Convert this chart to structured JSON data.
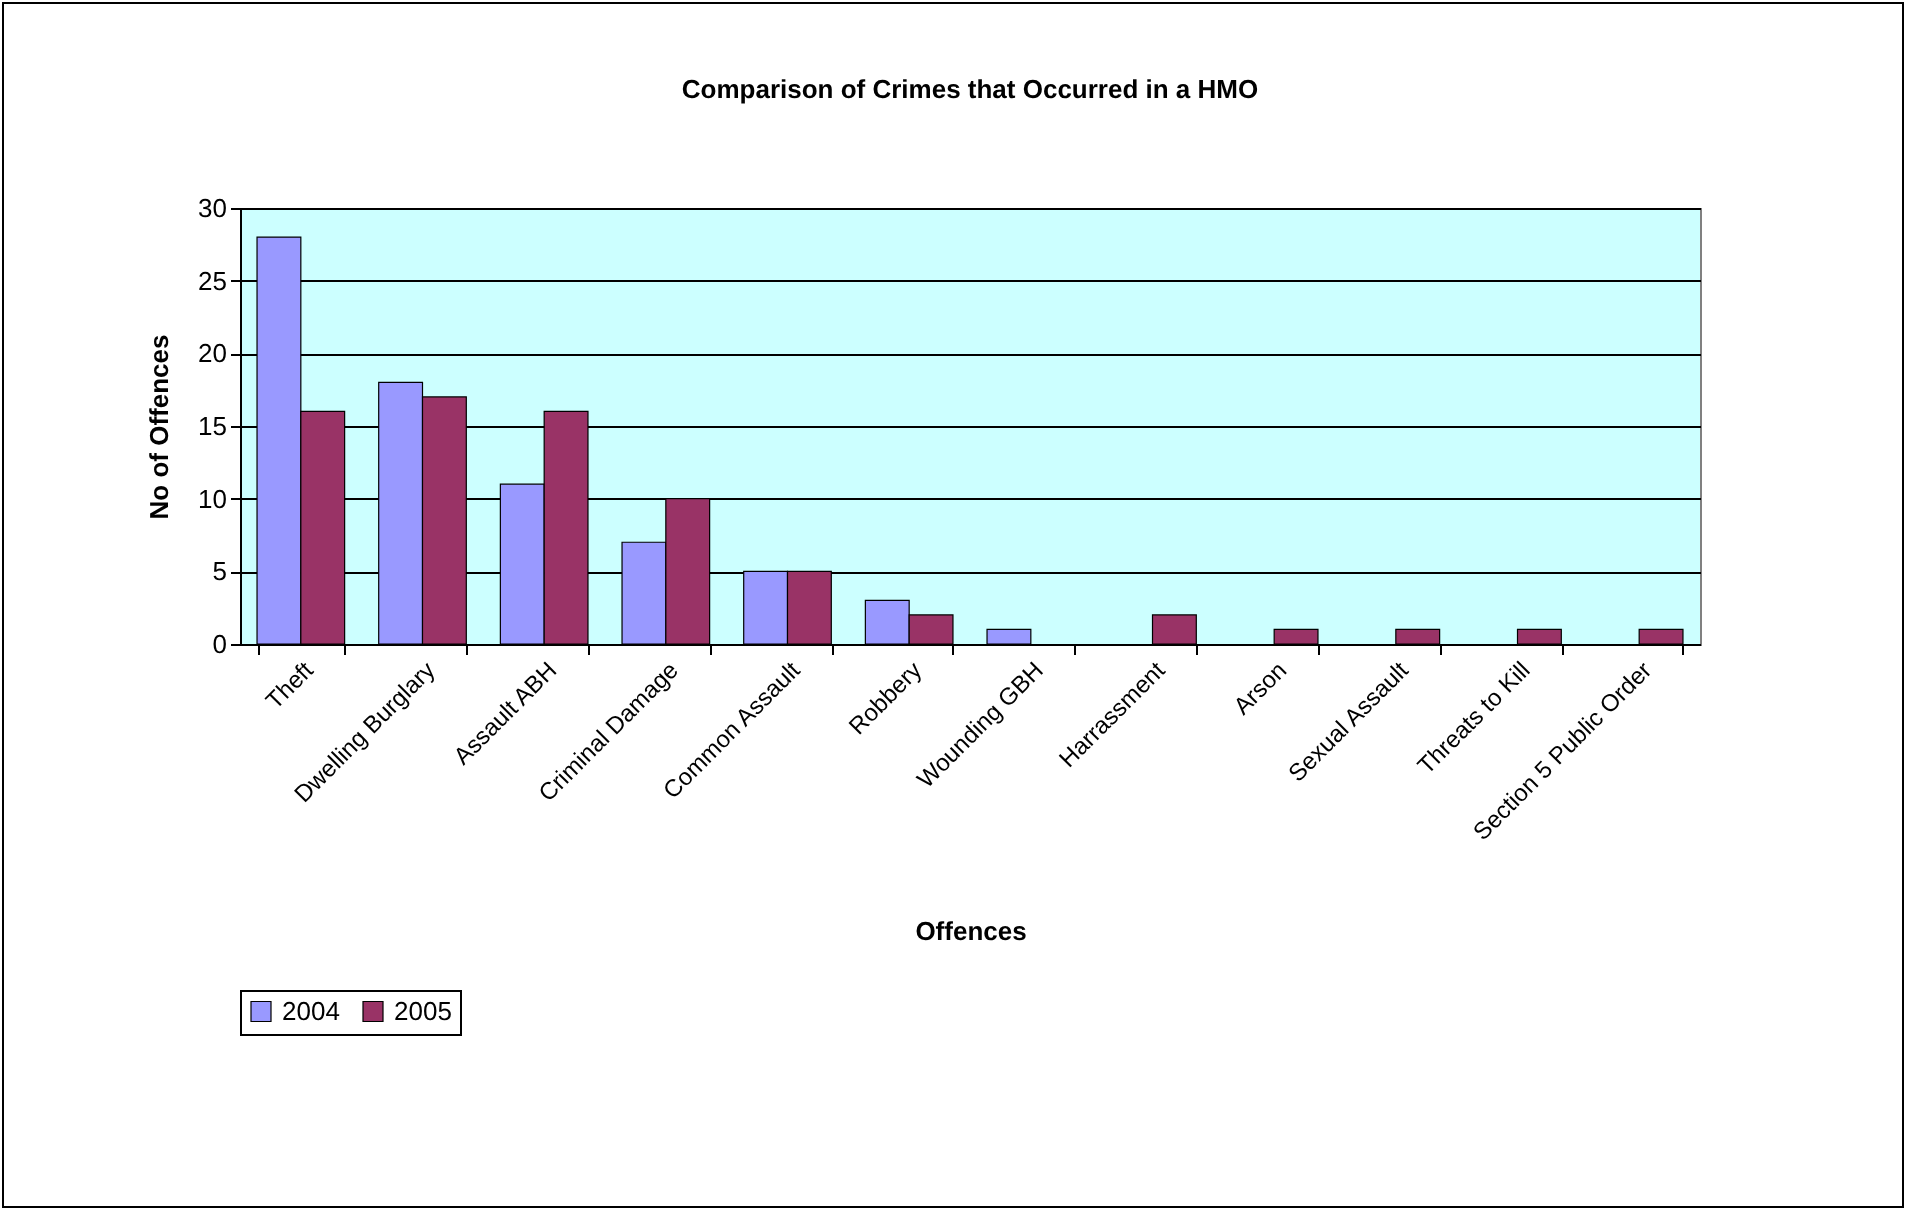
{
  "chart_data": {
    "type": "bar",
    "title": "Comparison of Crimes that Occurred in a HMO",
    "xlabel": "Offences",
    "ylabel": "No of Offences",
    "categories": [
      "Theft",
      "Dwelling Burglary",
      "Assault ABH",
      "Criminal Damage",
      "Common Assault",
      "Robbery",
      "Wounding GBH",
      "Harrassment",
      "Arson",
      "Sexual Assault",
      "Threats to Kill",
      "Section 5 Public Order"
    ],
    "series": [
      {
        "name": "2004",
        "color": "#9999ff",
        "values": [
          28,
          18,
          11,
          7,
          5,
          3,
          1,
          0,
          0,
          0,
          0,
          0
        ]
      },
      {
        "name": "2005",
        "color": "#993366",
        "values": [
          16,
          17,
          16,
          10,
          5,
          2,
          0,
          2,
          1,
          1,
          1,
          1
        ]
      }
    ],
    "ylim": [
      0,
      30
    ],
    "yticks": [
      0,
      5,
      10,
      15,
      20,
      25,
      30
    ],
    "grid": "y",
    "legend": "bottom"
  }
}
